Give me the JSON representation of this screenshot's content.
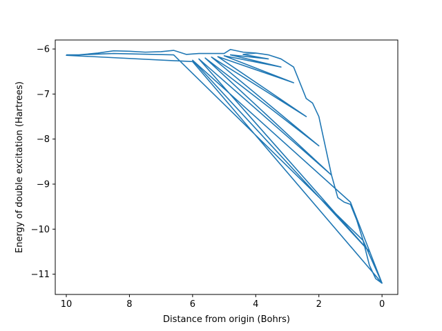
{
  "chart_data": {
    "type": "line",
    "title": "",
    "xlabel": "Distance from origin (Bohrs)",
    "ylabel": "Energy of double excitation (Hartrees)",
    "xlim": [
      10.35,
      -0.5
    ],
    "ylim": [
      -11.45,
      -5.8
    ],
    "x_inverted": true,
    "grid": false,
    "legend": "none",
    "xticks": [
      10,
      8,
      6,
      4,
      2,
      0
    ],
    "yticks": [
      -6,
      -7,
      -8,
      -9,
      -10,
      -11
    ],
    "series": [
      {
        "name": "",
        "color": "#1f77b4",
        "x": [
          10,
          9.6,
          9.0,
          8.5,
          8.0,
          7.5,
          7.0,
          6.6,
          6.2,
          5.8,
          5.4,
          5.0,
          4.8,
          4.4,
          4.0,
          3.6,
          3.2,
          2.8,
          2.6,
          2.4,
          2.2,
          2.0,
          1.8,
          1.6,
          1.4,
          1.2,
          1.0,
          0.8,
          0.6,
          0.4,
          0.2,
          0.0,
          0.6,
          6.6,
          8.5,
          10,
          6.0,
          0.0,
          1.0,
          6.0,
          0.4,
          5.8,
          1.6,
          5.6,
          2.0,
          5.4,
          2.4,
          5.2,
          2.8,
          5.0,
          3.2,
          4.8,
          3.6,
          4.4,
          4.0
        ],
        "y": [
          -6.13,
          -6.13,
          -6.09,
          -6.04,
          -6.05,
          -6.07,
          -6.06,
          -6.03,
          -6.12,
          -6.1,
          -6.1,
          -6.1,
          -6.01,
          -6.07,
          -6.09,
          -6.13,
          -6.22,
          -6.4,
          -6.75,
          -7.1,
          -7.2,
          -7.5,
          -8.15,
          -8.8,
          -9.3,
          -9.4,
          -9.45,
          -9.8,
          -10.25,
          -10.8,
          -11.1,
          -11.2,
          -10.25,
          -6.13,
          -6.1,
          -6.14,
          -6.28,
          -11.2,
          -9.4,
          -6.25,
          -10.5,
          -6.22,
          -8.8,
          -6.2,
          -8.15,
          -6.18,
          -7.5,
          -6.17,
          -6.75,
          -6.15,
          -6.4,
          -6.13,
          -6.22,
          -6.12,
          -6.09
        ]
      }
    ]
  }
}
